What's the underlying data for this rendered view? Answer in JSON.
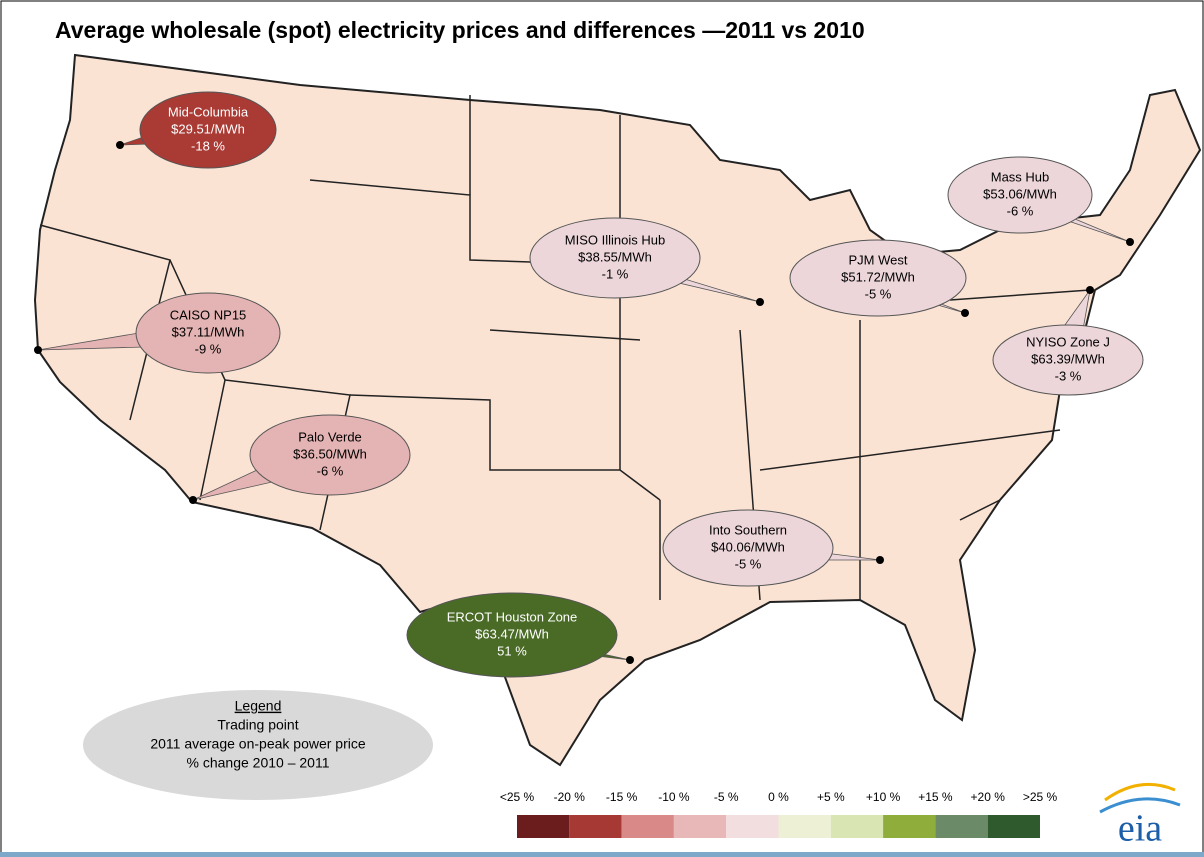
{
  "title": "Average wholesale (spot) electricity prices and differences —2011 vs 2010",
  "trading_points": [
    {
      "name": "Mid-Columbia",
      "price": "$29.51/MWh",
      "change": "-18 %",
      "color": "#a93a34"
    },
    {
      "name": "CAISO NP15",
      "price": "$37.11/MWh",
      "change": "-9 %",
      "color": "#e4b3b3"
    },
    {
      "name": "Palo Verde",
      "price": "$36.50/MWh",
      "change": "-6 %",
      "color": "#e4b3b3"
    },
    {
      "name": "MISO Illinois Hub",
      "price": "$38.55/MWh",
      "change": "-1 %",
      "color": "#ecd6da"
    },
    {
      "name": "PJM West",
      "price": "$51.72/MWh",
      "change": "-5 %",
      "color": "#ecd6da"
    },
    {
      "name": "Mass Hub",
      "price": "$53.06/MWh",
      "change": "-6 %",
      "color": "#ecd6da"
    },
    {
      "name": "NYISO Zone J",
      "price": "$63.39/MWh",
      "change": "-3 %",
      "color": "#ecd6da"
    },
    {
      "name": "Into Southern",
      "price": "$40.06/MWh",
      "change": "-5 %",
      "color": "#ecd6da"
    },
    {
      "name": "ERCOT Houston Zone",
      "price": "$63.47/MWh",
      "change": "51 %",
      "color": "#4a6b26"
    }
  ],
  "legend": {
    "title": "Legend",
    "lines": [
      "Trading point",
      "2011 average on-peak power price",
      "% change 2010 – 2011"
    ]
  },
  "scale": {
    "labels": [
      "<25 %",
      "-20 %",
      "-15 %",
      "-10 %",
      "-5 %",
      "0 %",
      "+5 %",
      "+10 %",
      "+15 %",
      "+20 %",
      ">25 %"
    ],
    "colors": [
      "#6b1d1d",
      "#a73935",
      "#d98a88",
      "#e8b8b9",
      "#f2dddf",
      "#eef0d6",
      "#d9e6b4",
      "#8fad3b",
      "#6b8a68",
      "#2f5a2e"
    ]
  },
  "logo": "eia"
}
